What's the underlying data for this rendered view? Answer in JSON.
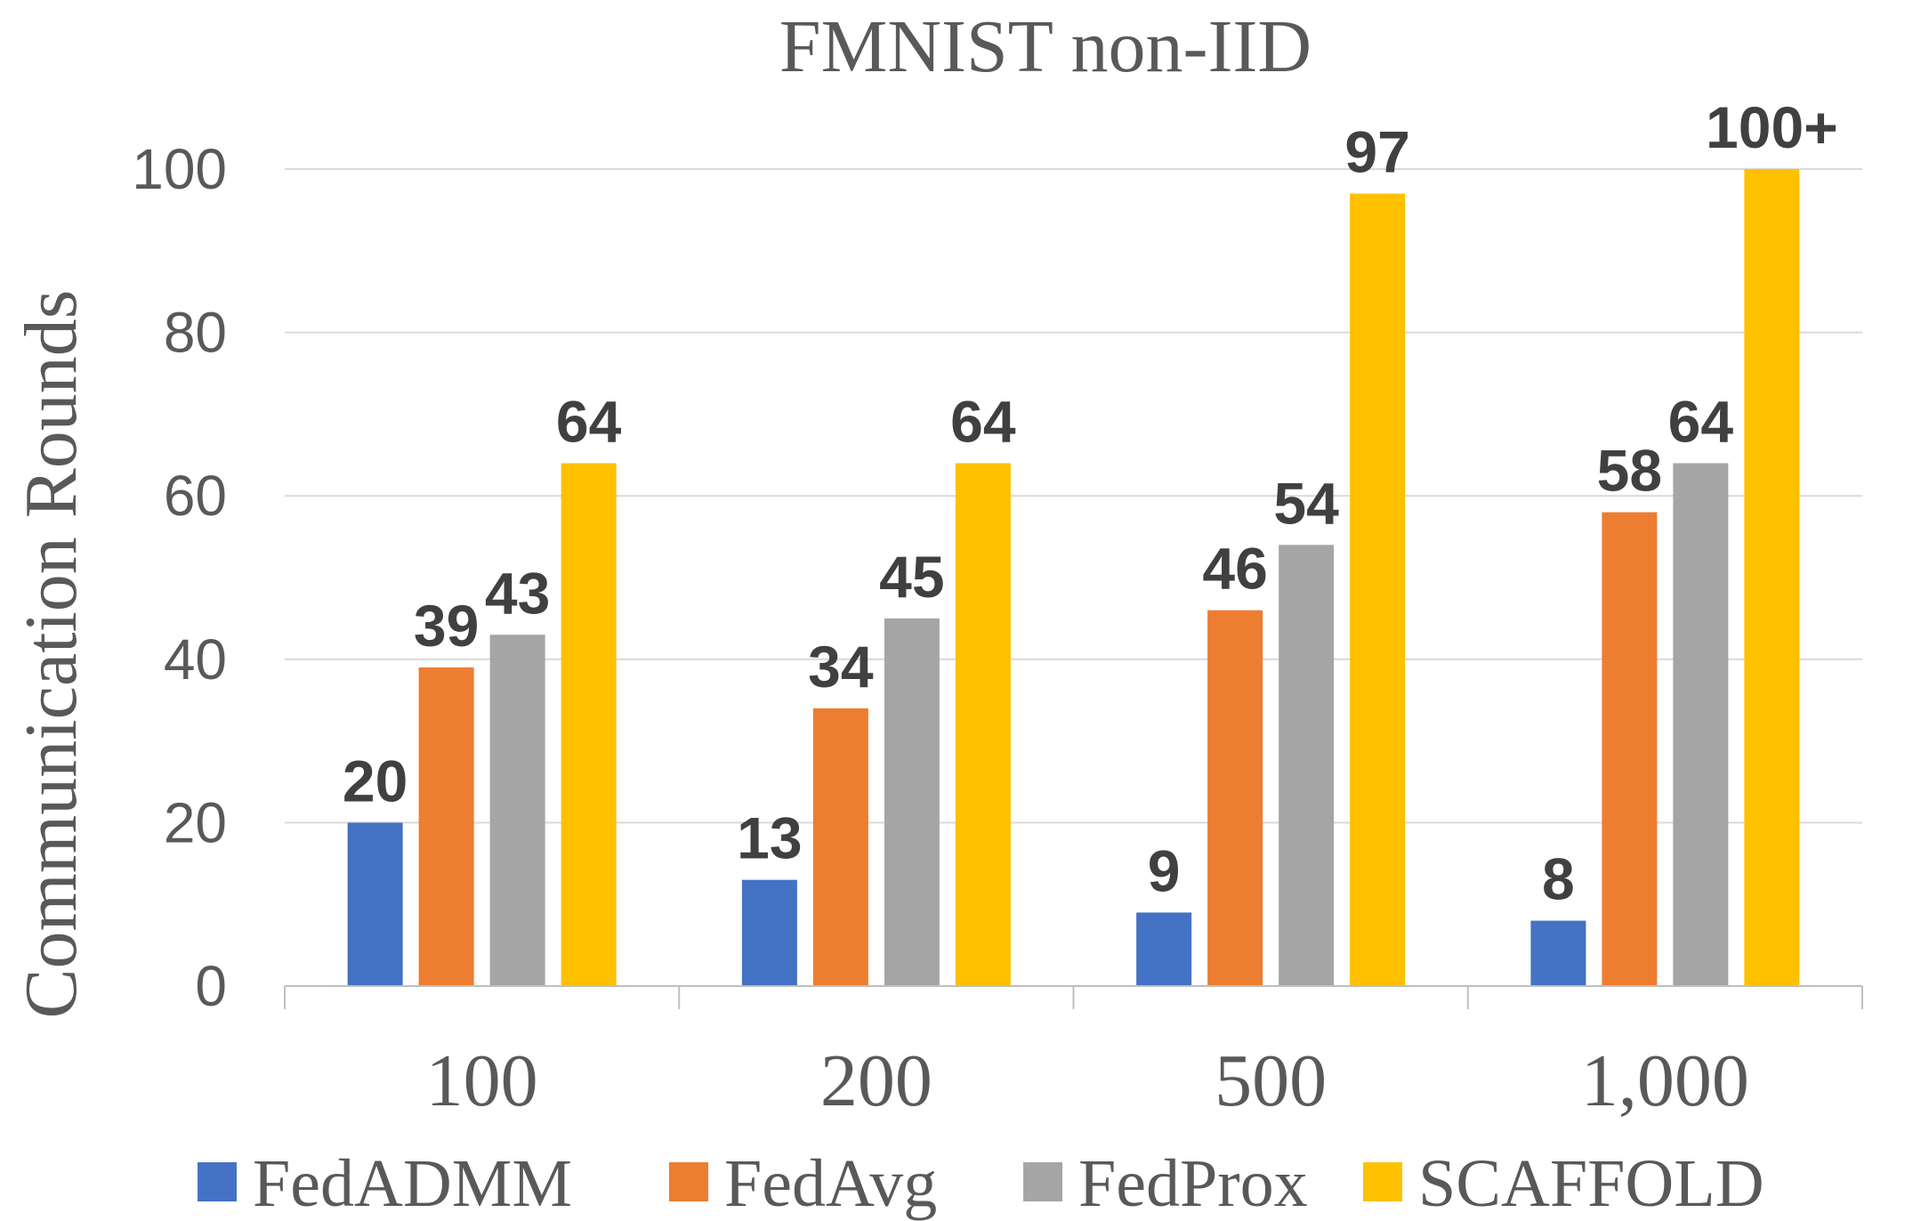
{
  "chart_data": {
    "type": "bar",
    "title": "FMNIST non-IID",
    "xlabel": "",
    "ylabel": "Communication Rounds",
    "ylim": [
      0,
      100
    ],
    "yticks": [
      0,
      20,
      40,
      60,
      80,
      100
    ],
    "grid": true,
    "legend": "bottom",
    "categories": [
      "100",
      "200",
      "500",
      "1,000"
    ],
    "series": [
      {
        "name": "FedADMM",
        "color": "#4472C4",
        "values": [
          20,
          13,
          9,
          8
        ],
        "labels": [
          "20",
          "13",
          "9",
          "8"
        ]
      },
      {
        "name": "FedAvg",
        "color": "#ED7D31",
        "values": [
          39,
          34,
          46,
          58
        ],
        "labels": [
          "39",
          "34",
          "46",
          "58"
        ]
      },
      {
        "name": "FedProx",
        "color": "#A5A5A5",
        "values": [
          43,
          45,
          54,
          64
        ],
        "labels": [
          "43",
          "45",
          "54",
          "64"
        ]
      },
      {
        "name": "SCAFFOLD",
        "color": "#FFC000",
        "values": [
          64,
          64,
          97,
          100
        ],
        "labels": [
          "64",
          "64",
          "97",
          "100+"
        ]
      }
    ]
  }
}
